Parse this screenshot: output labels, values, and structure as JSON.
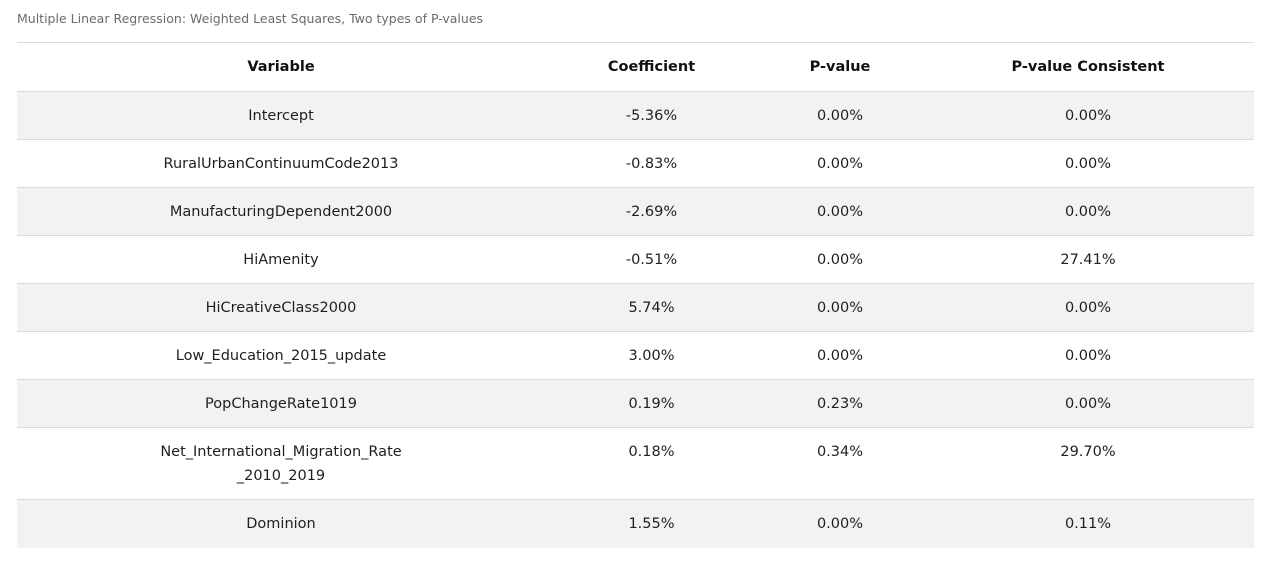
{
  "caption": "Multiple Linear Regression: Weighted Least Squares, Two types of P-values",
  "table": {
    "headers": {
      "variable": "Variable",
      "coefficient": "Coefficient",
      "pvalue": "P-value",
      "pvalue_consistent": "P-value Consistent"
    },
    "rows": [
      {
        "variable": "Intercept",
        "coefficient": "-5.36%",
        "pvalue": "0.00%",
        "pvalue_consistent": "0.00%"
      },
      {
        "variable": "RuralUrbanContinuumCode2013",
        "coefficient": "-0.83%",
        "pvalue": "0.00%",
        "pvalue_consistent": "0.00%"
      },
      {
        "variable": "ManufacturingDependent2000",
        "coefficient": "-2.69%",
        "pvalue": "0.00%",
        "pvalue_consistent": "0.00%"
      },
      {
        "variable": "HiAmenity",
        "coefficient": "-0.51%",
        "pvalue": "0.00%",
        "pvalue_consistent": "27.41%"
      },
      {
        "variable": "HiCreativeClass2000",
        "coefficient": "5.74%",
        "pvalue": "0.00%",
        "pvalue_consistent": "0.00%"
      },
      {
        "variable": "Low_Education_2015_update",
        "coefficient": "3.00%",
        "pvalue": "0.00%",
        "pvalue_consistent": "0.00%"
      },
      {
        "variable": "PopChangeRate1019",
        "coefficient": "0.19%",
        "pvalue": "0.23%",
        "pvalue_consistent": "0.00%"
      },
      {
        "variable_line1": "Net_International_Migration_Rate",
        "variable_line2": "_2010_2019",
        "coefficient": "0.18%",
        "pvalue": "0.34%",
        "pvalue_consistent": "29.70%"
      },
      {
        "variable": "Dominion",
        "coefficient": "1.55%",
        "pvalue": "0.00%",
        "pvalue_consistent": "0.11%"
      }
    ]
  }
}
